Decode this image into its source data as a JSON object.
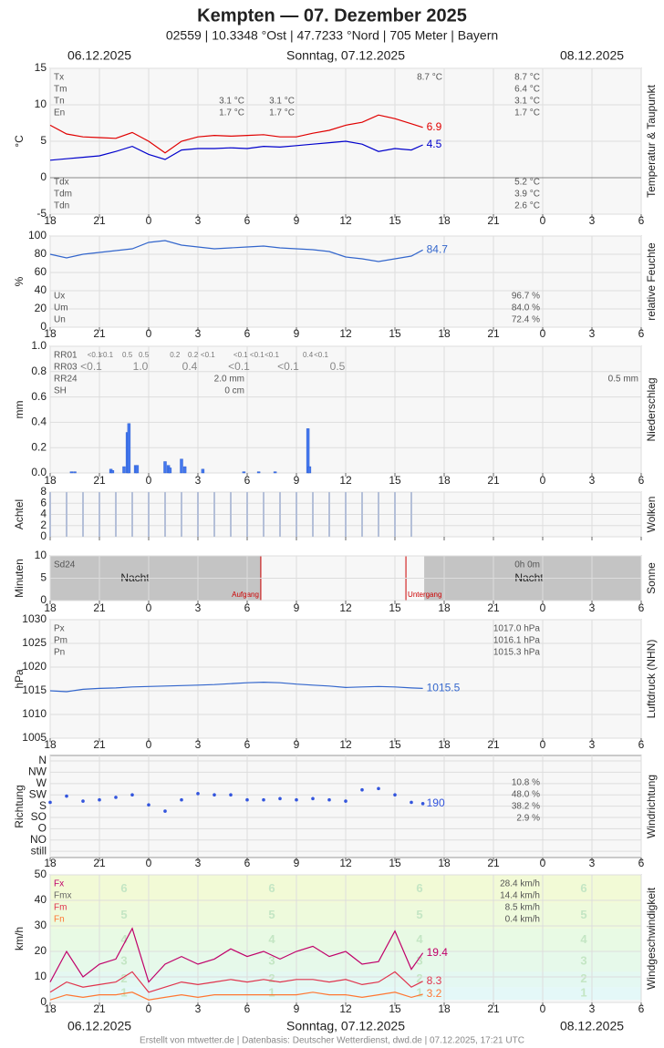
{
  "header": {
    "title": "Kempten  —  07. Dezember 2025",
    "subtitle": "02559  |  10.3348 °Ost  |  47.7233 °Nord  |  705 Meter  |  Bayern"
  },
  "time_axis": {
    "xlim": [
      18,
      54
    ],
    "xticks": [
      18,
      21,
      {
        "value": 24,
        "label": "0"
      },
      {
        "value": 27,
        "label": "3"
      },
      {
        "value": 30,
        "label": "6"
      },
      {
        "value": 33,
        "label": "9"
      },
      {
        "value": 36,
        "label": "12"
      },
      {
        "value": 39,
        "label": "15"
      },
      {
        "value": 42,
        "label": "18"
      },
      {
        "value": 45,
        "label": "21"
      },
      {
        "value": 48,
        "label": "0"
      },
      {
        "value": 51,
        "label": "3"
      },
      {
        "value": 54,
        "label": "6"
      }
    ],
    "date_left": "06.12.2025",
    "date_center": "Sonntag, 07.12.2025",
    "date_right": "08.12.2025"
  },
  "chart_data": [
    {
      "type": "line",
      "title": "Temperatur & Taupunkt",
      "ylabel": "°C",
      "ylim": [
        -5,
        15
      ],
      "yticks": [
        -5,
        0,
        5,
        10,
        15
      ],
      "zero_line": true,
      "x": [
        18,
        19,
        20,
        21,
        22,
        23,
        24,
        25,
        26,
        27,
        28,
        29,
        30,
        31,
        32,
        33,
        34,
        35,
        36,
        37,
        38,
        39,
        40,
        40.7
      ],
      "series": [
        {
          "name": "Temperatur",
          "color": "#e00000",
          "values": [
            7.2,
            6.0,
            5.6,
            5.5,
            5.4,
            6.2,
            5.0,
            3.4,
            5.0,
            5.6,
            5.8,
            5.7,
            5.8,
            5.9,
            5.6,
            5.6,
            6.1,
            6.5,
            7.2,
            7.6,
            8.6,
            8.1,
            7.4,
            6.9
          ]
        },
        {
          "name": "Taupunkt",
          "color": "#0000cc",
          "values": [
            2.4,
            2.6,
            2.8,
            3.0,
            3.6,
            4.3,
            3.2,
            2.5,
            3.8,
            4.0,
            4.0,
            4.1,
            4.0,
            4.3,
            4.2,
            4.4,
            4.6,
            4.8,
            5.0,
            4.6,
            3.6,
            4.0,
            3.8,
            4.5
          ]
        }
      ],
      "stats": [
        {
          "label": "Tx",
          "value": "8.7 °C"
        },
        {
          "label": "Tm",
          "value": "6.4 °C"
        },
        {
          "label": "Tn",
          "value": "3.1 °C"
        },
        {
          "label": "En",
          "value": "1.7 °C"
        }
      ],
      "stats_bottom": [
        {
          "label": "Tdx",
          "value": "5.2 °C"
        },
        {
          "label": "Tdm",
          "value": "3.9 °C"
        },
        {
          "label": "Tdn",
          "value": "2.6 °C"
        }
      ],
      "notes": [
        "8.7 °C",
        "3.1 °C",
        "1.7 °C",
        "3.1 °C",
        "1.7 °C"
      ]
    },
    {
      "type": "line",
      "title": "relative Feuchte",
      "ylabel": "%",
      "ylim": [
        0,
        100
      ],
      "yticks": [
        0,
        20,
        40,
        60,
        80,
        100
      ],
      "x": [
        18,
        19,
        20,
        21,
        22,
        23,
        24,
        25,
        26,
        27,
        28,
        29,
        30,
        31,
        32,
        33,
        34,
        35,
        36,
        37,
        38,
        39,
        40,
        40.7
      ],
      "series": [
        {
          "name": "Feuchte",
          "color": "#3366cc",
          "values": [
            80,
            76,
            80,
            82,
            84,
            86,
            93,
            95,
            90,
            88,
            86,
            87,
            88,
            89,
            87,
            86,
            85,
            83,
            77,
            75,
            72,
            75,
            78,
            84.7
          ]
        }
      ],
      "stats": [
        {
          "label": "Ux",
          "value": "96.7 %"
        },
        {
          "label": "Um",
          "value": "84.0 %"
        },
        {
          "label": "Un",
          "value": "72.4 %"
        }
      ]
    },
    {
      "type": "bar",
      "title": "Niederschlag",
      "ylabel": "mm",
      "ylim": [
        0,
        1
      ],
      "yticks": [
        {
          "value": 0,
          "label": "0.0"
        },
        0.2,
        0.4,
        0.6,
        0.8,
        {
          "value": 1,
          "label": "1.0"
        }
      ],
      "color": "#4477ee",
      "x": [
        19.3,
        19.5,
        21.7,
        21.8,
        22.5,
        22.7,
        22.8,
        23.2,
        23.3,
        25.0,
        25.2,
        25.3,
        26.0,
        26.2,
        27.3,
        29.8,
        30.7,
        31.7,
        33.7,
        33.8
      ],
      "values": [
        0.01,
        0.01,
        0.03,
        0.02,
        0.05,
        0.32,
        0.39,
        0.06,
        0.06,
        0.09,
        0.06,
        0.04,
        0.11,
        0.05,
        0.03,
        0.01,
        0.01,
        0.01,
        0.35,
        0.05
      ],
      "rr01_label": "RR01",
      "rr01": [
        "<0.1",
        "<0.1",
        "0.5",
        "0.5",
        "0.2",
        "0.2",
        "<0.1",
        "<0.1",
        "<0.1",
        "<0.1",
        "0.4",
        "<0.1"
      ],
      "rr03_label": "RR03",
      "rr03": [
        "<0.1",
        "1.0",
        "0.4",
        "<0.1",
        "<0.1",
        "0.5"
      ],
      "stats": [
        {
          "label": "RR24",
          "value": "2.0 mm"
        },
        {
          "label": "SH",
          "value": "0 cm"
        }
      ],
      "rr24_next": "0.5 mm"
    },
    {
      "type": "bar",
      "title": "Wolken",
      "ylabel": "Achtel",
      "ylim": [
        0,
        8
      ],
      "yticks": [
        0,
        2,
        4,
        6,
        8
      ],
      "color": "#b4bfd8",
      "x": [
        18,
        19,
        20,
        21,
        22,
        23,
        24,
        25,
        26,
        27,
        28,
        29,
        30,
        31,
        32,
        33,
        34,
        35,
        36,
        37,
        38,
        39,
        40
      ],
      "values": [
        8,
        8,
        8,
        8,
        8,
        8,
        8,
        8,
        8,
        8,
        8,
        8,
        8,
        8,
        8,
        8,
        8,
        8,
        8,
        8,
        8,
        8,
        8
      ]
    },
    {
      "type": "sun",
      "title": "Sonne",
      "ylabel": "Minuten",
      "ylim": [
        0,
        10
      ],
      "yticks": [
        0,
        5,
        10
      ],
      "sunrise": 30.83,
      "sunset": 39.67,
      "stats": [
        {
          "label": "Sd24",
          "value": "0h 0m"
        }
      ],
      "night_label": "Nacht",
      "sunrise_label": "Aufgang",
      "sunset_label": "Untergang"
    },
    {
      "type": "line",
      "title": "Luftdruck (NHN)",
      "ylabel": "hPa",
      "ylim": [
        1005,
        1030
      ],
      "yticks": [
        1005,
        1010,
        1015,
        1020,
        1025,
        1030
      ],
      "x": [
        18,
        19,
        20,
        21,
        22,
        23,
        24,
        25,
        26,
        27,
        28,
        29,
        30,
        31,
        32,
        33,
        34,
        35,
        36,
        37,
        38,
        39,
        40,
        40.7
      ],
      "series": [
        {
          "name": "Luftdruck",
          "color": "#3366cc",
          "values": [
            1015.0,
            1014.8,
            1015.3,
            1015.5,
            1015.6,
            1015.8,
            1015.9,
            1016.0,
            1016.1,
            1016.2,
            1016.3,
            1016.5,
            1016.7,
            1016.8,
            1016.7,
            1016.4,
            1016.2,
            1016.0,
            1015.7,
            1015.8,
            1015.9,
            1015.8,
            1015.6,
            1015.5
          ]
        }
      ],
      "stats": [
        {
          "label": "Px",
          "value": "1017.0 hPa"
        },
        {
          "label": "Pm",
          "value": "1016.1 hPa"
        },
        {
          "label": "Pn",
          "value": "1015.3 hPa"
        }
      ]
    },
    {
      "type": "scatter",
      "title": "Windrichtung",
      "ylabel": "Richtung",
      "ylim": [
        -25,
        382
      ],
      "yticks": [
        {
          "value": 0,
          "label": "still"
        },
        {
          "value": 45,
          "label": "NO"
        },
        {
          "value": 90,
          "label": "O"
        },
        {
          "value": 135,
          "label": "SO"
        },
        {
          "value": 180,
          "label": "S"
        },
        {
          "value": 225,
          "label": "SW"
        },
        {
          "value": 270,
          "label": "W"
        },
        {
          "value": 315,
          "label": "NW"
        },
        {
          "value": 360,
          "label": "N"
        }
      ],
      "x": [
        18,
        19,
        20,
        21,
        22,
        23,
        24,
        25,
        26,
        27,
        28,
        29,
        30,
        31,
        32,
        33,
        34,
        35,
        36,
        37,
        38,
        39,
        40,
        40.7
      ],
      "series": [
        {
          "name": "Richtung",
          "color": "#3355dd",
          "values": [
            195,
            220,
            200,
            205,
            215,
            225,
            185,
            160,
            205,
            230,
            225,
            225,
            205,
            205,
            210,
            205,
            210,
            205,
            200,
            245,
            250,
            225,
            195,
            190
          ]
        }
      ],
      "stats": [
        {
          "value": "10.8 %"
        },
        {
          "value": "48.0 %"
        },
        {
          "value": "38.2 %"
        },
        {
          "value": "2.9 %"
        }
      ]
    },
    {
      "type": "line",
      "title": "Windgeschwindigkeit",
      "ylabel": "km/h",
      "ylim": [
        0,
        50
      ],
      "yticks": [
        0,
        10,
        20,
        30,
        40,
        50
      ],
      "bands": [
        {
          "value": 1,
          "from": 1,
          "to": 6,
          "color": "#e4f8f8"
        },
        {
          "value": 2,
          "from": 6,
          "to": 12,
          "color": "#e4f8f2"
        },
        {
          "value": 3,
          "from": 12,
          "to": 20,
          "color": "#e6f9ea"
        },
        {
          "value": 4,
          "from": 20,
          "to": 29,
          "color": "#e8fae4"
        },
        {
          "value": 5,
          "from": 29,
          "to": 39,
          "color": "#eefadc"
        },
        {
          "value": 6,
          "from": 39,
          "to": 50,
          "color": "#f2fad6"
        }
      ],
      "x": [
        18,
        19,
        20,
        21,
        22,
        23,
        24,
        25,
        26,
        27,
        28,
        29,
        30,
        31,
        32,
        33,
        34,
        35,
        36,
        37,
        38,
        39,
        40,
        40.7
      ],
      "series": [
        {
          "name": "Fx",
          "color": "#c0006a",
          "values": [
            8,
            20,
            10,
            15,
            17,
            29,
            8,
            15,
            18,
            15,
            17,
            21,
            18,
            20,
            17,
            20,
            22,
            18,
            20,
            15,
            16,
            28,
            13,
            19.4
          ]
        },
        {
          "name": "Fm",
          "color": "#e0334d",
          "values": [
            4,
            8,
            6,
            7,
            8,
            12,
            4,
            6,
            8,
            7,
            8,
            9,
            8,
            9,
            8,
            9,
            9,
            8,
            9,
            7,
            8,
            12,
            6,
            8.3
          ]
        },
        {
          "name": "Fn",
          "color": "#ff7733",
          "values": [
            1,
            3,
            2,
            3,
            3,
            4,
            1,
            2,
            3,
            2,
            3,
            3,
            3,
            3,
            3,
            3,
            4,
            3,
            3,
            2,
            3,
            4,
            2,
            3.2
          ]
        }
      ],
      "stats": [
        {
          "label": "Fx",
          "value": "28.4 km/h",
          "color": "#c0006a"
        },
        {
          "label": "Fmx",
          "value": "14.4 km/h",
          "color": "#666666"
        },
        {
          "label": "Fm",
          "value": "8.5 km/h",
          "color": "#e0334d"
        },
        {
          "label": "Fn",
          "value": "0.4 km/h",
          "color": "#ff7733"
        }
      ]
    }
  ],
  "footer": "Erstellt von mtwetter.de | Datenbasis: Deutscher Wetterdienst, dwd.de | 07.12.2025, 17:21 UTC"
}
